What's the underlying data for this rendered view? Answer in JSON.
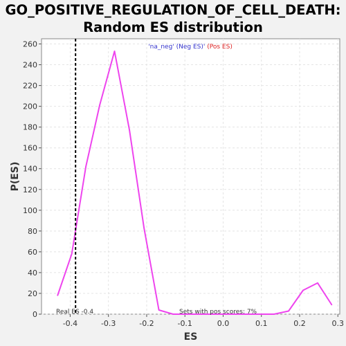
{
  "title_line1": "GO_POSITIVE_REGULATION_OF_CELL_DEATH:",
  "title_line2": "Random ES distribution",
  "chart_data": {
    "type": "line",
    "xlabel": "ES",
    "ylabel": "P(ES)",
    "xlim": [
      -0.475,
      0.305
    ],
    "ylim": [
      0,
      265
    ],
    "x_ticks": [
      "-0.4",
      "-0.3",
      "-0.2",
      "-0.1",
      "0.0",
      "0.1",
      "0.2",
      "0.3"
    ],
    "y_ticks": [
      "0",
      "20",
      "40",
      "60",
      "80",
      "100",
      "120",
      "140",
      "160",
      "180",
      "200",
      "220",
      "240",
      "260"
    ],
    "grid": true,
    "series": [
      {
        "color": "#ee44ee",
        "x": [
          -0.433,
          -0.396,
          -0.359,
          -0.323,
          -0.284,
          -0.245,
          -0.207,
          -0.168,
          -0.131,
          -0.093,
          -0.055,
          -0.017,
          0.021,
          0.059,
          0.096,
          0.133,
          0.171,
          0.209,
          0.247,
          0.284
        ],
        "y": [
          18,
          58,
          142,
          201,
          253,
          177,
          83,
          4,
          0,
          0,
          0,
          0,
          0,
          0,
          0,
          0,
          3,
          23,
          30,
          9
        ]
      }
    ],
    "real_es": {
      "x": -0.386,
      "label": "Real ES -0.4",
      "color": "#000000"
    },
    "annotation": "Sets with pos scores: 7%",
    "legend": {
      "position": "top-center",
      "neg_text": "'na_neg' (Neg ES)'",
      "neg_color": "#3333cc",
      "pos_text": " (Pos ES)",
      "pos_color": "#dd2222"
    }
  }
}
